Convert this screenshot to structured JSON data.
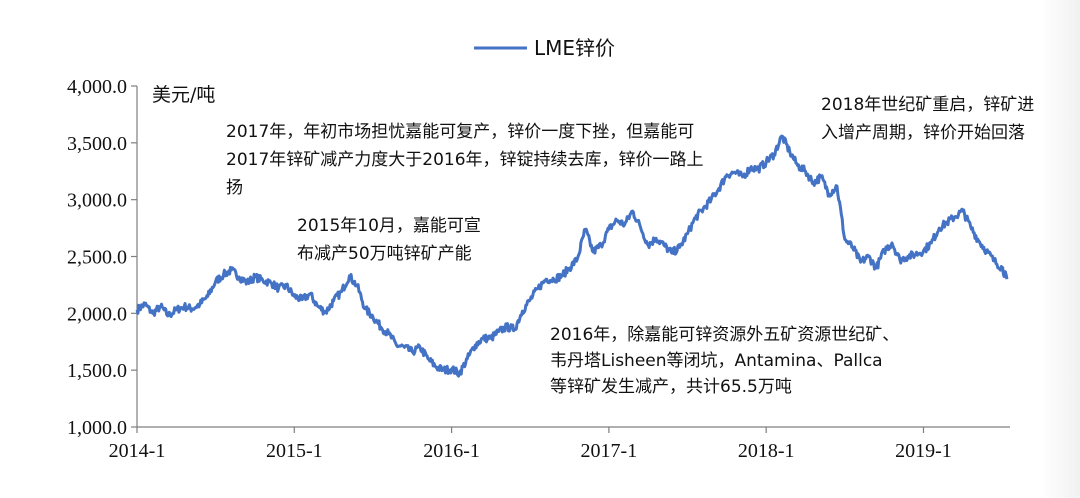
{
  "chart_data": {
    "type": "line",
    "legend": {
      "label": "LME锌价",
      "position": "top-center"
    },
    "ylabel": "美元/吨",
    "ylim": [
      1000,
      4000
    ],
    "yticks": [
      1000,
      1500,
      2000,
      2500,
      3000,
      3500,
      4000
    ],
    "ytick_labels": [
      "1,000.0",
      "1,500.0",
      "2,000.0",
      "2,500.0",
      "3,000.0",
      "3,500.0",
      "4,000.0"
    ],
    "xlim": [
      2014.0,
      2019.55
    ],
    "xticks": [
      2014.0,
      2015.0,
      2016.0,
      2017.0,
      2018.0,
      2019.0
    ],
    "xtick_labels": [
      "2014-1",
      "2015-1",
      "2016-1",
      "2017-1",
      "2018-1",
      "2019-1"
    ],
    "grid": false,
    "color": "#4472c4",
    "series": [
      {
        "name": "LME锌价",
        "points": [
          [
            2014.0,
            2030
          ],
          [
            2014.05,
            2080
          ],
          [
            2014.1,
            2000
          ],
          [
            2014.15,
            2060
          ],
          [
            2014.2,
            1980
          ],
          [
            2014.25,
            2030
          ],
          [
            2014.3,
            2060
          ],
          [
            2014.35,
            2040
          ],
          [
            2014.4,
            2080
          ],
          [
            2014.45,
            2150
          ],
          [
            2014.5,
            2280
          ],
          [
            2014.55,
            2340
          ],
          [
            2014.6,
            2380
          ],
          [
            2014.65,
            2320
          ],
          [
            2014.7,
            2270
          ],
          [
            2014.75,
            2320
          ],
          [
            2014.8,
            2290
          ],
          [
            2014.85,
            2270
          ],
          [
            2014.9,
            2220
          ],
          [
            2014.95,
            2240
          ],
          [
            2015.0,
            2150
          ],
          [
            2015.05,
            2120
          ],
          [
            2015.1,
            2170
          ],
          [
            2015.15,
            2060
          ],
          [
            2015.2,
            2010
          ],
          [
            2015.25,
            2110
          ],
          [
            2015.3,
            2190
          ],
          [
            2015.35,
            2330
          ],
          [
            2015.4,
            2240
          ],
          [
            2015.45,
            2040
          ],
          [
            2015.5,
            1970
          ],
          [
            2015.55,
            1880
          ],
          [
            2015.6,
            1820
          ],
          [
            2015.65,
            1720
          ],
          [
            2015.7,
            1700
          ],
          [
            2015.75,
            1660
          ],
          [
            2015.8,
            1700
          ],
          [
            2015.85,
            1600
          ],
          [
            2015.9,
            1530
          ],
          [
            2015.95,
            1500
          ],
          [
            2016.0,
            1510
          ],
          [
            2016.05,
            1470
          ],
          [
            2016.1,
            1600
          ],
          [
            2016.15,
            1720
          ],
          [
            2016.2,
            1780
          ],
          [
            2016.25,
            1780
          ],
          [
            2016.3,
            1840
          ],
          [
            2016.35,
            1880
          ],
          [
            2016.4,
            1860
          ],
          [
            2016.45,
            2020
          ],
          [
            2016.5,
            2120
          ],
          [
            2016.55,
            2220
          ],
          [
            2016.6,
            2300
          ],
          [
            2016.65,
            2300
          ],
          [
            2016.7,
            2330
          ],
          [
            2016.75,
            2400
          ],
          [
            2016.8,
            2480
          ],
          [
            2016.85,
            2740
          ],
          [
            2016.9,
            2540
          ],
          [
            2016.95,
            2600
          ],
          [
            2017.0,
            2740
          ],
          [
            2017.05,
            2820
          ],
          [
            2017.1,
            2780
          ],
          [
            2017.15,
            2900
          ],
          [
            2017.2,
            2760
          ],
          [
            2017.25,
            2600
          ],
          [
            2017.3,
            2660
          ],
          [
            2017.35,
            2600
          ],
          [
            2017.4,
            2530
          ],
          [
            2017.45,
            2580
          ],
          [
            2017.5,
            2700
          ],
          [
            2017.55,
            2840
          ],
          [
            2017.6,
            2920
          ],
          [
            2017.65,
            3000
          ],
          [
            2017.7,
            3100
          ],
          [
            2017.75,
            3220
          ],
          [
            2017.8,
            3240
          ],
          [
            2017.85,
            3200
          ],
          [
            2017.9,
            3280
          ],
          [
            2017.95,
            3270
          ],
          [
            2018.0,
            3330
          ],
          [
            2018.05,
            3400
          ],
          [
            2018.1,
            3560
          ],
          [
            2018.15,
            3420
          ],
          [
            2018.2,
            3300
          ],
          [
            2018.25,
            3250
          ],
          [
            2018.3,
            3150
          ],
          [
            2018.35,
            3200
          ],
          [
            2018.4,
            3050
          ],
          [
            2018.45,
            3120
          ],
          [
            2018.5,
            2650
          ],
          [
            2018.55,
            2580
          ],
          [
            2018.6,
            2450
          ],
          [
            2018.65,
            2500
          ],
          [
            2018.7,
            2400
          ],
          [
            2018.75,
            2550
          ],
          [
            2018.8,
            2620
          ],
          [
            2018.85,
            2470
          ],
          [
            2018.9,
            2500
          ],
          [
            2018.95,
            2520
          ],
          [
            2019.0,
            2550
          ],
          [
            2019.05,
            2620
          ],
          [
            2019.1,
            2750
          ],
          [
            2019.15,
            2800
          ],
          [
            2019.2,
            2850
          ],
          [
            2019.25,
            2900
          ],
          [
            2019.3,
            2760
          ],
          [
            2019.35,
            2640
          ],
          [
            2019.4,
            2550
          ],
          [
            2019.45,
            2460
          ],
          [
            2019.5,
            2400
          ],
          [
            2019.53,
            2300
          ]
        ]
      }
    ],
    "annotations": [
      {
        "lines": [
          "2017年，年初市场担忧嘉能可复产，锌价一度下挫，但嘉能可",
          "2017年锌矿减产力度大于2016年，锌锭持续去库，锌价一路上",
          "扬"
        ]
      },
      {
        "lines": [
          "2015年10月，嘉能可宣",
          "布减产50万吨锌矿产能"
        ]
      },
      {
        "lines": [
          "2018年世纪矿重启，锌矿进",
          "入增产周期，锌价开始回落"
        ]
      },
      {
        "lines": [
          "2016年，除嘉能可锌资源外五矿资源世纪矿、",
          "韦丹塔Lisheen等闭坑，Antamina、Pallca",
          "等锌矿发生减产，共计65.5万吨"
        ]
      }
    ]
  }
}
